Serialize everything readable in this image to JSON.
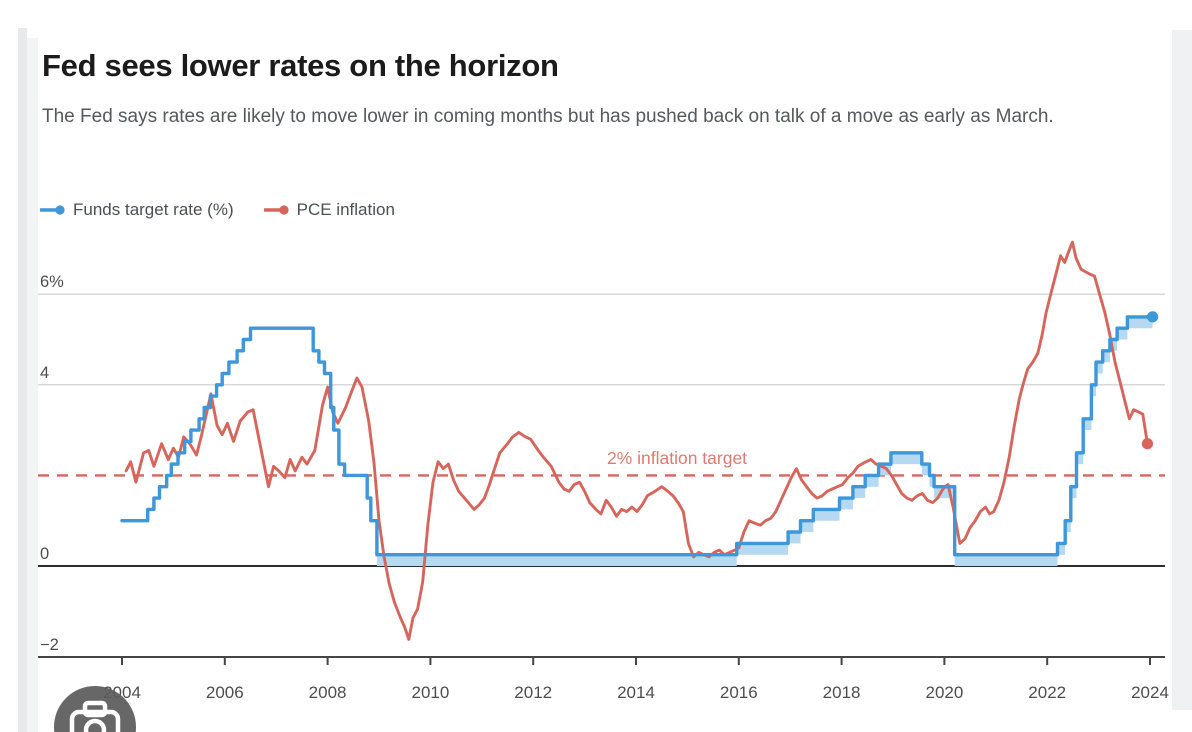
{
  "header": {
    "title": "Fed sees lower rates on the horizon",
    "subtitle": "The Fed says rates are likely to move lower in coming months but has pushed back on talk of a move as early as March."
  },
  "legend": {
    "items": [
      {
        "label": "Funds target rate (%)",
        "marker": "line-dot-icon"
      },
      {
        "label": "PCE inflation",
        "marker": "line-dot-icon"
      }
    ]
  },
  "colors": {
    "funds_blue": "#3e96db",
    "band_blue": "#b5d9f1",
    "inflation_red": "#d8655b",
    "annotation_red": "#dd7b70",
    "gridline": "#cbcbcb",
    "zero_line": "#2e2e2e",
    "axis": "#454545",
    "tick_label": "#4e4e4e",
    "title_text": "#1b1b1b",
    "subtitle_text": "#55595c"
  },
  "camera_button": {
    "icon": "camera-icon"
  },
  "chart_data": {
    "type": "line",
    "title": "Fed sees lower rates on the horizon",
    "xlabel": "",
    "ylabel": "",
    "x_axis": {
      "ticks": [
        2004,
        2006,
        2008,
        2010,
        2012,
        2014,
        2016,
        2018,
        2020,
        2022,
        2024
      ],
      "range": [
        2002.4,
        2024.35
      ],
      "grid": false
    },
    "y_axis": {
      "gridlines": [
        {
          "value": 6,
          "label": "6%",
          "style": "light"
        },
        {
          "value": 4,
          "label": "4",
          "style": "light"
        },
        {
          "value": 0,
          "label": "0",
          "style": "zero"
        },
        {
          "value": -2,
          "label": "−2",
          "style": "axis"
        }
      ],
      "range": [
        -2,
        7.2
      ],
      "grid": true
    },
    "target_line": {
      "value": 2,
      "label": "2% inflation target",
      "style": "dashed"
    },
    "legend_position": "top-left",
    "series": [
      {
        "name": "Funds target rate (%)",
        "style": "step",
        "band_lower_offset": 0.25,
        "band_start_year": 2008.96,
        "end_year": 2024.05,
        "end_dot": [
          2024.05,
          5.5
        ],
        "steps": [
          [
            2004.0,
            1.0
          ],
          [
            2004.5,
            1.25
          ],
          [
            2004.62,
            1.5
          ],
          [
            2004.73,
            1.75
          ],
          [
            2004.87,
            2.0
          ],
          [
            2004.96,
            2.25
          ],
          [
            2005.09,
            2.5
          ],
          [
            2005.22,
            2.75
          ],
          [
            2005.34,
            3.0
          ],
          [
            2005.5,
            3.25
          ],
          [
            2005.6,
            3.5
          ],
          [
            2005.72,
            3.75
          ],
          [
            2005.84,
            4.0
          ],
          [
            2005.95,
            4.25
          ],
          [
            2006.08,
            4.5
          ],
          [
            2006.24,
            4.75
          ],
          [
            2006.36,
            5.0
          ],
          [
            2006.5,
            5.25
          ],
          [
            2007.72,
            4.75
          ],
          [
            2007.83,
            4.5
          ],
          [
            2007.94,
            4.25
          ],
          [
            2008.06,
            3.5
          ],
          [
            2008.12,
            3.0
          ],
          [
            2008.22,
            2.25
          ],
          [
            2008.33,
            2.0
          ],
          [
            2008.77,
            1.5
          ],
          [
            2008.84,
            1.0
          ],
          [
            2008.96,
            0.25
          ],
          [
            2015.96,
            0.5
          ],
          [
            2016.96,
            0.75
          ],
          [
            2017.2,
            1.0
          ],
          [
            2017.45,
            1.25
          ],
          [
            2017.96,
            1.5
          ],
          [
            2018.22,
            1.75
          ],
          [
            2018.46,
            2.0
          ],
          [
            2018.72,
            2.25
          ],
          [
            2018.96,
            2.5
          ],
          [
            2019.56,
            2.25
          ],
          [
            2019.71,
            2.0
          ],
          [
            2019.8,
            1.75
          ],
          [
            2020.2,
            0.25
          ],
          [
            2022.2,
            0.5
          ],
          [
            2022.35,
            1.0
          ],
          [
            2022.46,
            1.75
          ],
          [
            2022.57,
            2.5
          ],
          [
            2022.7,
            3.25
          ],
          [
            2022.86,
            4.0
          ],
          [
            2022.95,
            4.5
          ],
          [
            2023.08,
            4.75
          ],
          [
            2023.22,
            5.0
          ],
          [
            2023.36,
            5.25
          ],
          [
            2023.56,
            5.5
          ]
        ]
      },
      {
        "name": "PCE inflation",
        "style": "line",
        "end_dot": [
          2023.95,
          2.7
        ],
        "points": [
          [
            2004.08,
            2.1
          ],
          [
            2004.17,
            2.3
          ],
          [
            2004.27,
            1.85
          ],
          [
            2004.42,
            2.5
          ],
          [
            2004.52,
            2.55
          ],
          [
            2004.62,
            2.2
          ],
          [
            2004.77,
            2.7
          ],
          [
            2004.9,
            2.35
          ],
          [
            2005.0,
            2.6
          ],
          [
            2005.1,
            2.4
          ],
          [
            2005.2,
            2.85
          ],
          [
            2005.32,
            2.7
          ],
          [
            2005.45,
            2.45
          ],
          [
            2005.55,
            2.9
          ],
          [
            2005.65,
            3.4
          ],
          [
            2005.73,
            3.8
          ],
          [
            2005.85,
            3.1
          ],
          [
            2005.95,
            2.9
          ],
          [
            2006.05,
            3.15
          ],
          [
            2006.17,
            2.75
          ],
          [
            2006.3,
            3.2
          ],
          [
            2006.45,
            3.4
          ],
          [
            2006.55,
            3.45
          ],
          [
            2006.7,
            2.6
          ],
          [
            2006.85,
            1.75
          ],
          [
            2006.95,
            2.2
          ],
          [
            2007.05,
            2.1
          ],
          [
            2007.17,
            1.95
          ],
          [
            2007.27,
            2.35
          ],
          [
            2007.37,
            2.1
          ],
          [
            2007.5,
            2.4
          ],
          [
            2007.6,
            2.25
          ],
          [
            2007.75,
            2.55
          ],
          [
            2007.9,
            3.55
          ],
          [
            2008.0,
            3.95
          ],
          [
            2008.1,
            3.4
          ],
          [
            2008.2,
            3.15
          ],
          [
            2008.35,
            3.5
          ],
          [
            2008.45,
            3.8
          ],
          [
            2008.57,
            4.15
          ],
          [
            2008.67,
            3.95
          ],
          [
            2008.8,
            3.2
          ],
          [
            2008.9,
            2.3
          ],
          [
            2009.0,
            1.0
          ],
          [
            2009.1,
            0.2
          ],
          [
            2009.2,
            -0.4
          ],
          [
            2009.3,
            -0.8
          ],
          [
            2009.42,
            -1.15
          ],
          [
            2009.5,
            -1.35
          ],
          [
            2009.58,
            -1.62
          ],
          [
            2009.66,
            -1.15
          ],
          [
            2009.75,
            -0.95
          ],
          [
            2009.85,
            -0.35
          ],
          [
            2009.95,
            0.9
          ],
          [
            2010.05,
            1.85
          ],
          [
            2010.15,
            2.3
          ],
          [
            2010.25,
            2.15
          ],
          [
            2010.35,
            2.25
          ],
          [
            2010.45,
            1.9
          ],
          [
            2010.55,
            1.65
          ],
          [
            2010.7,
            1.45
          ],
          [
            2010.85,
            1.25
          ],
          [
            2010.95,
            1.35
          ],
          [
            2011.05,
            1.5
          ],
          [
            2011.15,
            1.8
          ],
          [
            2011.25,
            2.15
          ],
          [
            2011.35,
            2.5
          ],
          [
            2011.5,
            2.7
          ],
          [
            2011.6,
            2.85
          ],
          [
            2011.72,
            2.95
          ],
          [
            2011.85,
            2.85
          ],
          [
            2011.95,
            2.8
          ],
          [
            2012.1,
            2.55
          ],
          [
            2012.2,
            2.4
          ],
          [
            2012.35,
            2.2
          ],
          [
            2012.5,
            1.85
          ],
          [
            2012.6,
            1.7
          ],
          [
            2012.7,
            1.65
          ],
          [
            2012.8,
            1.8
          ],
          [
            2012.9,
            1.85
          ],
          [
            2013.0,
            1.65
          ],
          [
            2013.1,
            1.4
          ],
          [
            2013.22,
            1.25
          ],
          [
            2013.32,
            1.15
          ],
          [
            2013.42,
            1.45
          ],
          [
            2013.52,
            1.3
          ],
          [
            2013.62,
            1.1
          ],
          [
            2013.72,
            1.25
          ],
          [
            2013.82,
            1.2
          ],
          [
            2013.92,
            1.3
          ],
          [
            2014.02,
            1.2
          ],
          [
            2014.12,
            1.35
          ],
          [
            2014.22,
            1.55
          ],
          [
            2014.37,
            1.65
          ],
          [
            2014.5,
            1.75
          ],
          [
            2014.62,
            1.65
          ],
          [
            2014.72,
            1.55
          ],
          [
            2014.82,
            1.4
          ],
          [
            2014.92,
            1.2
          ],
          [
            2015.02,
            0.5
          ],
          [
            2015.12,
            0.2
          ],
          [
            2015.22,
            0.3
          ],
          [
            2015.32,
            0.25
          ],
          [
            2015.42,
            0.2
          ],
          [
            2015.52,
            0.3
          ],
          [
            2015.62,
            0.35
          ],
          [
            2015.72,
            0.25
          ],
          [
            2015.82,
            0.3
          ],
          [
            2015.92,
            0.35
          ],
          [
            2016.0,
            0.4
          ],
          [
            2016.1,
            0.75
          ],
          [
            2016.2,
            1.0
          ],
          [
            2016.3,
            0.95
          ],
          [
            2016.42,
            0.9
          ],
          [
            2016.52,
            1.0
          ],
          [
            2016.62,
            1.05
          ],
          [
            2016.72,
            1.2
          ],
          [
            2016.82,
            1.45
          ],
          [
            2016.92,
            1.7
          ],
          [
            2017.02,
            1.95
          ],
          [
            2017.12,
            2.15
          ],
          [
            2017.22,
            1.9
          ],
          [
            2017.32,
            1.75
          ],
          [
            2017.42,
            1.6
          ],
          [
            2017.52,
            1.5
          ],
          [
            2017.62,
            1.55
          ],
          [
            2017.72,
            1.65
          ],
          [
            2017.82,
            1.7
          ],
          [
            2017.92,
            1.75
          ],
          [
            2018.02,
            1.8
          ],
          [
            2018.12,
            1.95
          ],
          [
            2018.22,
            2.05
          ],
          [
            2018.32,
            2.2
          ],
          [
            2018.47,
            2.3
          ],
          [
            2018.57,
            2.35
          ],
          [
            2018.67,
            2.25
          ],
          [
            2018.77,
            2.2
          ],
          [
            2018.87,
            2.15
          ],
          [
            2018.97,
            2.0
          ],
          [
            2019.07,
            1.8
          ],
          [
            2019.17,
            1.6
          ],
          [
            2019.27,
            1.5
          ],
          [
            2019.37,
            1.45
          ],
          [
            2019.47,
            1.55
          ],
          [
            2019.57,
            1.6
          ],
          [
            2019.67,
            1.45
          ],
          [
            2019.77,
            1.4
          ],
          [
            2019.87,
            1.5
          ],
          [
            2019.97,
            1.7
          ],
          [
            2020.07,
            1.8
          ],
          [
            2020.17,
            1.3
          ],
          [
            2020.3,
            0.5
          ],
          [
            2020.4,
            0.6
          ],
          [
            2020.5,
            0.85
          ],
          [
            2020.6,
            1.0
          ],
          [
            2020.7,
            1.2
          ],
          [
            2020.8,
            1.3
          ],
          [
            2020.88,
            1.15
          ],
          [
            2020.96,
            1.2
          ],
          [
            2021.06,
            1.45
          ],
          [
            2021.16,
            1.85
          ],
          [
            2021.26,
            2.4
          ],
          [
            2021.36,
            3.1
          ],
          [
            2021.46,
            3.7
          ],
          [
            2021.54,
            4.05
          ],
          [
            2021.62,
            4.35
          ],
          [
            2021.72,
            4.5
          ],
          [
            2021.82,
            4.7
          ],
          [
            2021.9,
            5.1
          ],
          [
            2021.98,
            5.6
          ],
          [
            2022.08,
            6.05
          ],
          [
            2022.16,
            6.4
          ],
          [
            2022.26,
            6.85
          ],
          [
            2022.34,
            6.7
          ],
          [
            2022.42,
            6.95
          ],
          [
            2022.49,
            7.15
          ],
          [
            2022.56,
            6.8
          ],
          [
            2022.66,
            6.55
          ],
          [
            2022.74,
            6.5
          ],
          [
            2022.82,
            6.45
          ],
          [
            2022.92,
            6.4
          ],
          [
            2023.02,
            6.0
          ],
          [
            2023.12,
            5.6
          ],
          [
            2023.22,
            5.1
          ],
          [
            2023.32,
            4.5
          ],
          [
            2023.42,
            4.05
          ],
          [
            2023.52,
            3.6
          ],
          [
            2023.6,
            3.25
          ],
          [
            2023.68,
            3.45
          ],
          [
            2023.78,
            3.4
          ],
          [
            2023.86,
            3.35
          ],
          [
            2023.95,
            2.7
          ]
        ]
      }
    ]
  }
}
